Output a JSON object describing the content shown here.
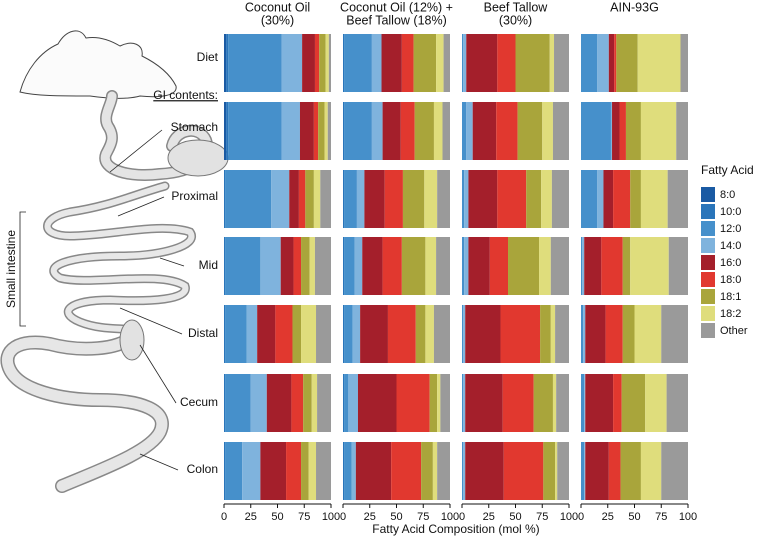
{
  "chart_data": {
    "type": "bar",
    "orientation": "horizontal",
    "stacked": true,
    "categories": [
      "Diet",
      "Stomach",
      "Proximal",
      "Mid",
      "Distal",
      "Cecum",
      "Colon"
    ],
    "group_label": "GI contents:",
    "bracket_label": "Small intestine",
    "xlabel": "Fatty Acid Composition (mol %)",
    "xlim": [
      0,
      100
    ],
    "xticks": [
      0,
      25,
      50,
      75,
      100
    ],
    "legend": {
      "title": "Fatty Acid",
      "position": "right"
    },
    "series": [
      {
        "name": "8:0",
        "color": "#1a5aa3"
      },
      {
        "name": "10:0",
        "color": "#2a75ba"
      },
      {
        "name": "12:0",
        "color": "#4690cb"
      },
      {
        "name": "14:0",
        "color": "#7fb3dd"
      },
      {
        "name": "16:0",
        "color": "#a41f2b"
      },
      {
        "name": "18:0",
        "color": "#e1382f"
      },
      {
        "name": "18:1",
        "color": "#a9a53b"
      },
      {
        "name": "18:2",
        "color": "#dfdd7c"
      },
      {
        "name": "Other",
        "color": "#9a9a9a"
      }
    ],
    "panels": [
      {
        "title": [
          "Coconut Oil",
          "(30%)"
        ],
        "values": [
          [
            2,
            2,
            50,
            19,
            12,
            4,
            6,
            3,
            2
          ],
          [
            2,
            2,
            50,
            17,
            13,
            4,
            6,
            3,
            3
          ],
          [
            0,
            1,
            43,
            17,
            9,
            6,
            8,
            6,
            10
          ],
          [
            0,
            1,
            33,
            19,
            12,
            7,
            8,
            5,
            15
          ],
          [
            0,
            1,
            20,
            10,
            17,
            16,
            8,
            14,
            14
          ],
          [
            0,
            1,
            24,
            15,
            23,
            11,
            8,
            5,
            13
          ],
          [
            0,
            1,
            16,
            17,
            24,
            14,
            7,
            7,
            14
          ]
        ]
      },
      {
        "title": [
          "Coconut Oil (12%) +",
          "Beef Tallow (18%)"
        ],
        "values": [
          [
            0,
            1,
            26,
            9,
            19,
            11,
            21,
            7,
            6
          ],
          [
            0,
            1,
            26,
            10,
            17,
            13,
            18,
            8,
            7
          ],
          [
            0,
            1,
            12,
            7,
            19,
            17,
            20,
            12,
            12
          ],
          [
            0,
            1,
            10,
            7,
            19,
            18,
            22,
            10,
            13
          ],
          [
            0,
            1,
            8,
            7,
            26,
            26,
            9,
            8,
            15
          ],
          [
            0,
            1,
            4,
            9,
            36,
            31,
            7,
            3,
            9
          ],
          [
            0,
            1,
            7,
            4,
            33,
            28,
            11,
            4,
            12
          ]
        ]
      },
      {
        "title": [
          "Beef Tallow",
          "(30%)"
        ],
        "values": [
          [
            0,
            0,
            1,
            3,
            29,
            17,
            32,
            4,
            14
          ],
          [
            0,
            0,
            4,
            6,
            22,
            20,
            23,
            10,
            15
          ],
          [
            0,
            0,
            2,
            4,
            27,
            27,
            14,
            10,
            16
          ],
          [
            0,
            0,
            2,
            4,
            20,
            17,
            29,
            11,
            17
          ],
          [
            0,
            0,
            1,
            2,
            33,
            37,
            10,
            4,
            13
          ],
          [
            0,
            0,
            1,
            2,
            35,
            29,
            18,
            3,
            12
          ],
          [
            0,
            0,
            1,
            2,
            36,
            37,
            11,
            2,
            11
          ]
        ]
      },
      {
        "title": [
          "AIN-93G"
        ],
        "values": [
          [
            0,
            0,
            15,
            11,
            5,
            2,
            20,
            40,
            7
          ],
          [
            0,
            0,
            28,
            1,
            7,
            6,
            14,
            33,
            11
          ],
          [
            0,
            0,
            15,
            6,
            9,
            16,
            10,
            25,
            19
          ],
          [
            0,
            0,
            1,
            2,
            16,
            20,
            7,
            36,
            18
          ],
          [
            0,
            0,
            2,
            2,
            19,
            16,
            11,
            25,
            25
          ],
          [
            0,
            0,
            3,
            1,
            26,
            8,
            22,
            20,
            20
          ],
          [
            0,
            0,
            3,
            1,
            22,
            11,
            19,
            19,
            25
          ]
        ]
      }
    ]
  }
}
